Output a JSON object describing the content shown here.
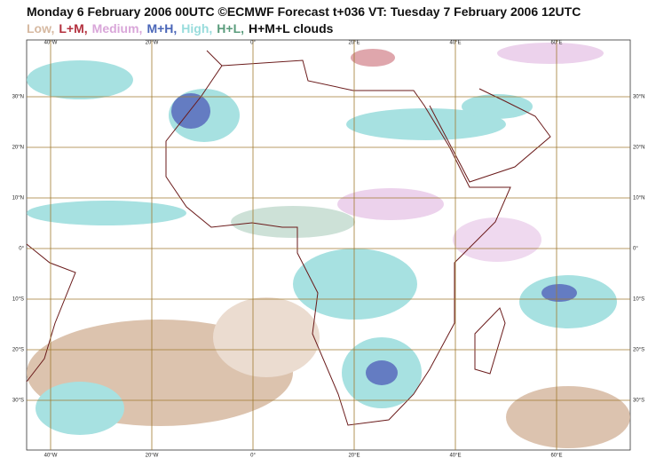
{
  "header": {
    "title": "Monday 6 February 2006 00UTC ©ECMWF Forecast t+036 VT: Tuesday 7 February 2006 12UTC",
    "legend": [
      {
        "text": "Low,",
        "color": "#d6b9a1"
      },
      {
        "text": "L+M,",
        "color": "#b3303e"
      },
      {
        "text": "Medium,",
        "color": "#d9a6d9"
      },
      {
        "text": "M+H,",
        "color": "#4a66b8"
      },
      {
        "text": "High,",
        "color": "#98dcdc"
      },
      {
        "text": "H+L,",
        "color": "#5a9c7c"
      },
      {
        "text": "H+M+L clouds",
        "color": "#111111"
      }
    ]
  },
  "map": {
    "lon_labels": [
      "40°W",
      "20°W",
      "0°",
      "20°E",
      "40°E",
      "60°E"
    ],
    "lat_labels": [
      "30°N",
      "20°N",
      "10°N",
      "0°",
      "10°S",
      "20°S",
      "30°S"
    ]
  }
}
